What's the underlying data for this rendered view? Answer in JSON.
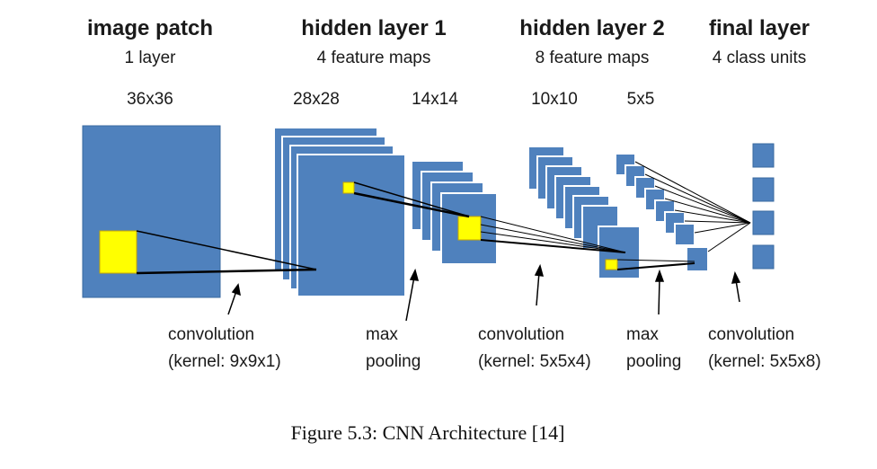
{
  "columns": [
    {
      "title": "image patch",
      "subtitle": "1 layer"
    },
    {
      "title": "hidden layer 1",
      "subtitle": "4 feature maps"
    },
    {
      "title": "hidden layer 2",
      "subtitle": "8 feature maps"
    },
    {
      "title": "final layer",
      "subtitle": "4 class units"
    }
  ],
  "sizes": [
    "36x36",
    "28x28",
    "14x14",
    "10x10",
    "5x5"
  ],
  "operations": [
    {
      "line1": "convolution",
      "line2": "(kernel: 9x9x1)"
    },
    {
      "line1": "max",
      "line2": "pooling"
    },
    {
      "line1": "convolution",
      "line2": "(kernel: 5x5x4)"
    },
    {
      "line1": "max",
      "line2": "pooling"
    },
    {
      "line1": "convolution",
      "line2": "(kernel: 5x5x8)"
    }
  ],
  "caption": "Figure 5.3: CNN Architecture [14]",
  "colors": {
    "map_fill": "#4f81bd",
    "map_stroke": "#3a6aa0",
    "kernel": "#ffff00",
    "line": "#000000"
  }
}
